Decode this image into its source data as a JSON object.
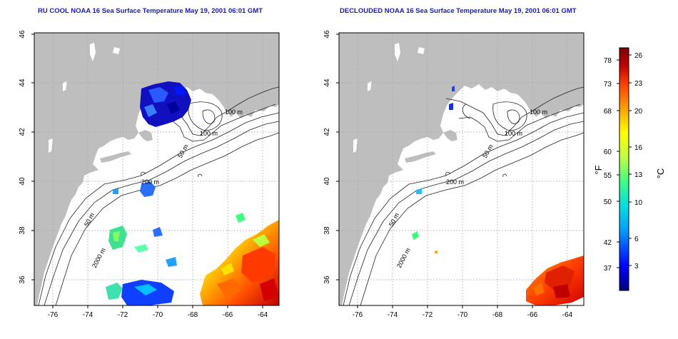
{
  "maps": [
    {
      "title": "RU COOL NOAA 16 Sea Surface Temperature May 19, 2001 06:01 GMT",
      "x_ticks": [
        "-76",
        "-74",
        "-72",
        "-70",
        "-68",
        "-66",
        "-64"
      ],
      "y_ticks": [
        "46",
        "44",
        "42",
        "40",
        "38",
        "36"
      ],
      "contour_labels": [
        "100 m",
        "100 m",
        "50 m",
        "200 m",
        "50 m",
        "2000 m"
      ]
    },
    {
      "title": "DECLOUDED NOAA 16 Sea Surface Temperature May 19, 2001 06:01 GMT",
      "x_ticks": [
        "-76",
        "-74",
        "-72",
        "-70",
        "-68",
        "-66",
        "-64"
      ],
      "y_ticks": [
        "46",
        "44",
        "42",
        "40",
        "38",
        "36"
      ],
      "contour_labels": [
        "100 m",
        "100 m",
        "50 m",
        "200 m",
        "50 m",
        "2000 m"
      ]
    }
  ],
  "colorbar": {
    "fahrenheit_label": "°F",
    "celsius_label": "°C",
    "fahrenheit_ticks": [
      "78",
      "73",
      "68",
      "60",
      "55",
      "50",
      "42",
      "37"
    ],
    "celsius_ticks": [
      "26",
      "23",
      "20",
      "16",
      "13",
      "10",
      "6",
      "3"
    ],
    "colors": [
      "#000080",
      "#0000ff",
      "#00a0ff",
      "#00e0e0",
      "#40ff80",
      "#c0ff40",
      "#ffff00",
      "#ffa000",
      "#ff4000",
      "#c00000",
      "#800000"
    ]
  }
}
